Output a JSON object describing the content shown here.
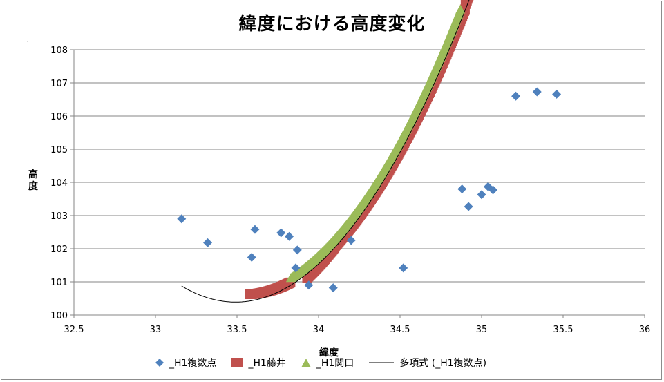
{
  "chart_data": {
    "type": "scatter",
    "title": "緯度における高度変化",
    "xlabel": "緯度",
    "ylabel": "高度",
    "xlim": [
      32.5,
      36
    ],
    "ylim": [
      100,
      108
    ],
    "xticks": [
      "32.5",
      "33",
      "33.5",
      "34",
      "34.5",
      "35",
      "35.5",
      "36"
    ],
    "yticks": [
      "100",
      "101",
      "102",
      "103",
      "104",
      "105",
      "106",
      "107",
      "108"
    ],
    "colors": {
      "points": "#4f81bd",
      "fujii": "#c0504d",
      "sekiguchi": "#9bbb59",
      "trend": "#000000"
    },
    "series": [
      {
        "name": "_H1複数点",
        "marker": "diamond",
        "points": [
          [
            33.16,
            102.9
          ],
          [
            33.32,
            102.18
          ],
          [
            33.59,
            101.74
          ],
          [
            33.61,
            102.58
          ],
          [
            33.77,
            102.48
          ],
          [
            33.82,
            102.37
          ],
          [
            33.86,
            101.42
          ],
          [
            33.87,
            101.96
          ],
          [
            33.94,
            100.9
          ],
          [
            34.09,
            100.82
          ],
          [
            34.2,
            102.25
          ],
          [
            34.52,
            101.42
          ],
          [
            34.88,
            103.8
          ],
          [
            34.92,
            103.27
          ],
          [
            35.0,
            103.63
          ],
          [
            35.04,
            103.87
          ],
          [
            35.07,
            103.77
          ],
          [
            35.21,
            106.6
          ],
          [
            35.34,
            106.73
          ],
          [
            35.46,
            106.66
          ]
        ]
      },
      {
        "name": "_H1藤井",
        "marker": "square",
        "segments": [
          [
            33.58,
            33.83
          ],
          [
            33.93,
            35.36
          ]
        ]
      },
      {
        "name": "_H1関口",
        "marker": "triangle",
        "segments": [
          [
            33.83,
            34.87
          ]
        ]
      },
      {
        "name": "多項式 (_H1複数点)",
        "marker": "line",
        "range": [
          33.16,
          35.48
        ]
      }
    ],
    "trend_coefficients": [
      4.44,
      -297.4,
      5080.5
    ]
  },
  "page": {
    "dot": "."
  }
}
